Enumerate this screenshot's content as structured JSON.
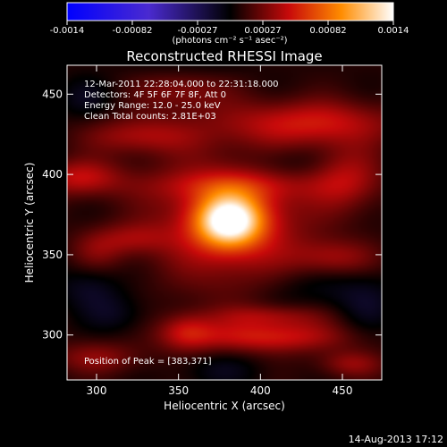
{
  "chart_data": {
    "type": "heatmap",
    "title": "Reconstructed RHESSI Image",
    "xlabel": "Heliocentric X (arcsec)",
    "ylabel": "Heliocentric Y (arcsec)",
    "xlim": [
      282,
      474
    ],
    "ylim": [
      272,
      468
    ],
    "x_ticks": [
      300,
      350,
      400,
      450
    ],
    "y_ticks": [
      300,
      350,
      400,
      450
    ],
    "colorbar": {
      "label": "(photons cm⁻² s⁻¹ asec⁻²)",
      "range": [
        -0.0014,
        0.0014
      ],
      "ticks": [
        "-0.0014",
        "-0.00082",
        "-0.00027",
        "0.00027",
        "0.00082",
        "0.0014"
      ]
    },
    "annotations": [
      "12-Mar-2011 22:28:04.000 to 22:31:18.000",
      "Detectors: 4F 5F 6F 7F 8F, Att 0",
      "Energy Range: 12.0 - 25.0 keV",
      "Clean     Total counts: 2.81E+03"
    ],
    "peak_label": "Position of Peak = [383,371]",
    "peak": {
      "x": 383,
      "y": 371,
      "value": 0.0014
    },
    "blobs": [
      {
        "x": 381,
        "y": 371,
        "sx": 14,
        "sy": 11,
        "value": 0.0011
      },
      {
        "x": 382,
        "y": 371,
        "sx": 32,
        "sy": 28,
        "value": 0.0005
      },
      {
        "x": 380,
        "y": 393,
        "sx": 40,
        "sy": 7,
        "value": 0.00022
      },
      {
        "x": 290,
        "y": 398,
        "sx": 18,
        "sy": 8,
        "value": 0.0004
      },
      {
        "x": 327,
        "y": 424,
        "sx": 24,
        "sy": 8,
        "value": 0.00033
      },
      {
        "x": 430,
        "y": 432,
        "sx": 38,
        "sy": 10,
        "value": 0.00045
      },
      {
        "x": 452,
        "y": 398,
        "sx": 16,
        "sy": 14,
        "value": 0.00035
      },
      {
        "x": 352,
        "y": 453,
        "sx": 20,
        "sy": 10,
        "value": 0.00025
      },
      {
        "x": 322,
        "y": 360,
        "sx": 16,
        "sy": 7,
        "value": 0.00025
      },
      {
        "x": 300,
        "y": 352,
        "sx": 12,
        "sy": 9,
        "value": 0.0002
      },
      {
        "x": 445,
        "y": 348,
        "sx": 18,
        "sy": 8,
        "value": 0.0003
      },
      {
        "x": 355,
        "y": 302,
        "sx": 12,
        "sy": 8,
        "value": 0.00035
      },
      {
        "x": 405,
        "y": 299,
        "sx": 34,
        "sy": 7,
        "value": 0.00046
      },
      {
        "x": 405,
        "y": 312,
        "sx": 24,
        "sy": 5,
        "value": 0.00026
      },
      {
        "x": 300,
        "y": 286,
        "sx": 20,
        "sy": 7,
        "value": 0.00026
      },
      {
        "x": 455,
        "y": 282,
        "sx": 14,
        "sy": 6,
        "value": 0.00028
      },
      {
        "x": 292,
        "y": 448,
        "sx": 12,
        "sy": 9,
        "value": -0.00015
      },
      {
        "x": 415,
        "y": 407,
        "sx": 20,
        "sy": 8,
        "value": -0.00015
      },
      {
        "x": 295,
        "y": 330,
        "sx": 14,
        "sy": 10,
        "value": -0.00018
      },
      {
        "x": 312,
        "y": 313,
        "sx": 14,
        "sy": 9,
        "value": -0.00016
      },
      {
        "x": 432,
        "y": 330,
        "sx": 24,
        "sy": 10,
        "value": -0.00014
      },
      {
        "x": 375,
        "y": 278,
        "sx": 18,
        "sy": 8,
        "value": -0.00014
      },
      {
        "x": 465,
        "y": 318,
        "sx": 14,
        "sy": 14,
        "value": -0.00016
      },
      {
        "x": 355,
        "y": 468,
        "sx": 24,
        "sy": 7,
        "value": -0.00012
      }
    ]
  },
  "footer": {
    "date": "14-Aug-2013 17:12"
  }
}
